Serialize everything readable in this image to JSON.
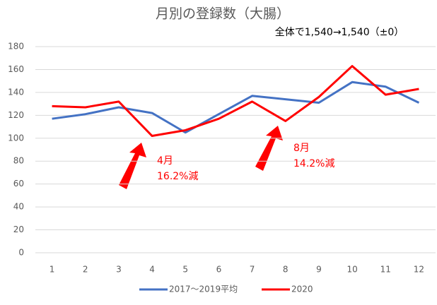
{
  "chart_data": {
    "type": "line",
    "title": "月別の登録数（大腸）",
    "subtitle": "全体で1,540→1,540（±0）",
    "categories": [
      "1",
      "2",
      "3",
      "4",
      "5",
      "6",
      "7",
      "8",
      "9",
      "10",
      "11",
      "12"
    ],
    "series": [
      {
        "name": "2017～2019平均",
        "color": "#4472c4",
        "values": [
          117,
          121,
          127,
          122,
          105,
          121,
          137,
          134,
          131,
          149,
          145,
          131
        ]
      },
      {
        "name": "2020",
        "color": "#ff0000",
        "values": [
          128,
          127,
          132,
          102,
          107,
          117,
          132,
          115,
          136,
          163,
          138,
          143
        ]
      }
    ],
    "ylim": [
      0,
      180
    ],
    "yticks": [
      0,
      20,
      40,
      60,
      80,
      100,
      120,
      140,
      160,
      180
    ],
    "grid": true,
    "legend": "bottom",
    "annotations": [
      "4月",
      "16.2%減",
      "8月",
      "14.2%減"
    ]
  }
}
